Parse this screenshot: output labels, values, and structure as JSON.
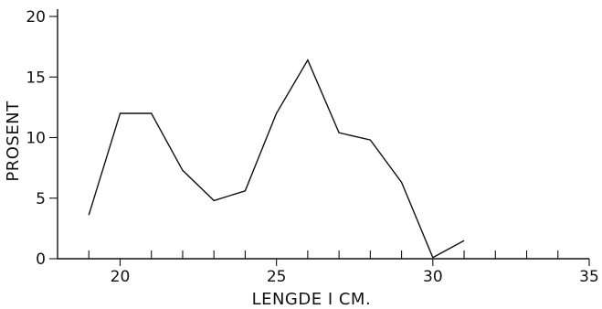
{
  "chart_data": {
    "type": "line",
    "title": "",
    "xlabel": "LENGDE I CM.",
    "ylabel": "PROSENT",
    "xlim": [
      18,
      35
    ],
    "ylim": [
      0,
      20
    ],
    "x_ticks_major": [
      20,
      25,
      30,
      35
    ],
    "x_ticks_minor": [
      19,
      21,
      22,
      23,
      24,
      26,
      27,
      28,
      29,
      31,
      32,
      33,
      34
    ],
    "y_ticks": [
      0,
      5,
      10,
      15,
      20
    ],
    "grid": false,
    "series": [
      {
        "x": [
          19,
          20,
          21,
          22,
          23,
          24,
          25,
          26,
          27,
          28,
          29,
          30
        ],
        "y": [
          3.6,
          12.0,
          12.0,
          7.3,
          4.8,
          5.6,
          12.0,
          16.4,
          10.4,
          9.8,
          6.3,
          0.1
        ]
      },
      {
        "x": [
          30,
          31
        ],
        "y": [
          0.1,
          1.5
        ]
      }
    ]
  }
}
